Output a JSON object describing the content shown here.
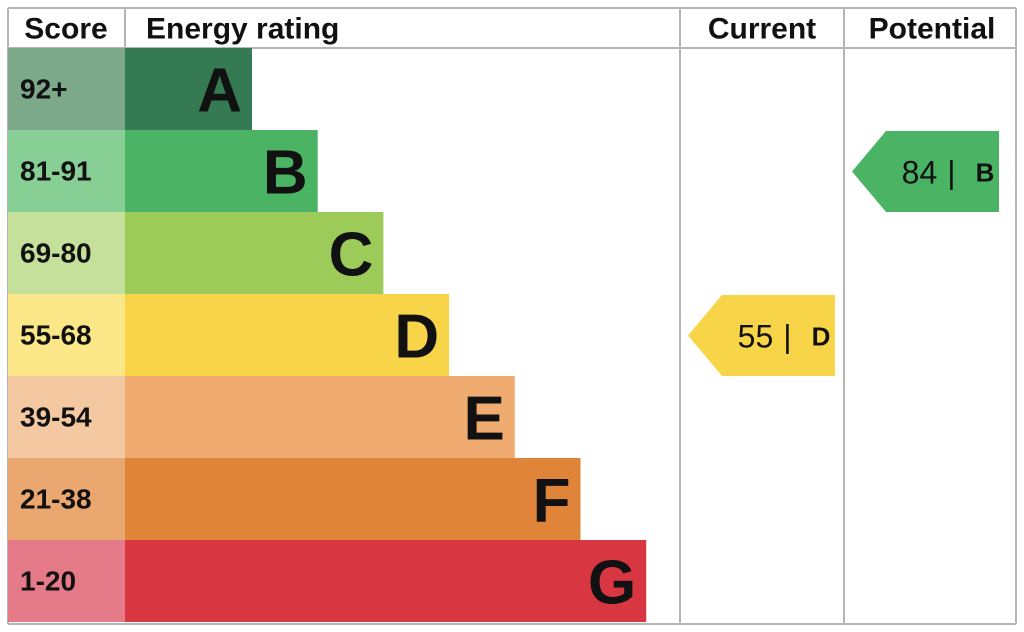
{
  "header": {
    "score": "Score",
    "rating": "Energy rating",
    "current": "Current",
    "potential": "Potential"
  },
  "bands": [
    {
      "score": "92+",
      "letter": "A",
      "color": "#357a52",
      "score_color": "#7ba98a"
    },
    {
      "score": "81-91",
      "letter": "B",
      "color": "#4bb364",
      "score_color": "#88cf96"
    },
    {
      "score": "69-80",
      "letter": "C",
      "color": "#9dcb5a",
      "score_color": "#c5e09a"
    },
    {
      "score": "55-68",
      "letter": "D",
      "color": "#f8d548",
      "score_color": "#fbe688"
    },
    {
      "score": "39-54",
      "letter": "E",
      "color": "#f0ac70",
      "score_color": "#f4c9a2"
    },
    {
      "score": "21-38",
      "letter": "F",
      "color": "#e0843a",
      "score_color": "#eaa870"
    },
    {
      "score": "1-20",
      "letter": "G",
      "color": "#d83641",
      "score_color": "#e57b88"
    }
  ],
  "current": {
    "value": 55,
    "separator": "|",
    "letter": "D"
  },
  "potential": {
    "value": 84,
    "separator": "|",
    "letter": "B"
  }
}
